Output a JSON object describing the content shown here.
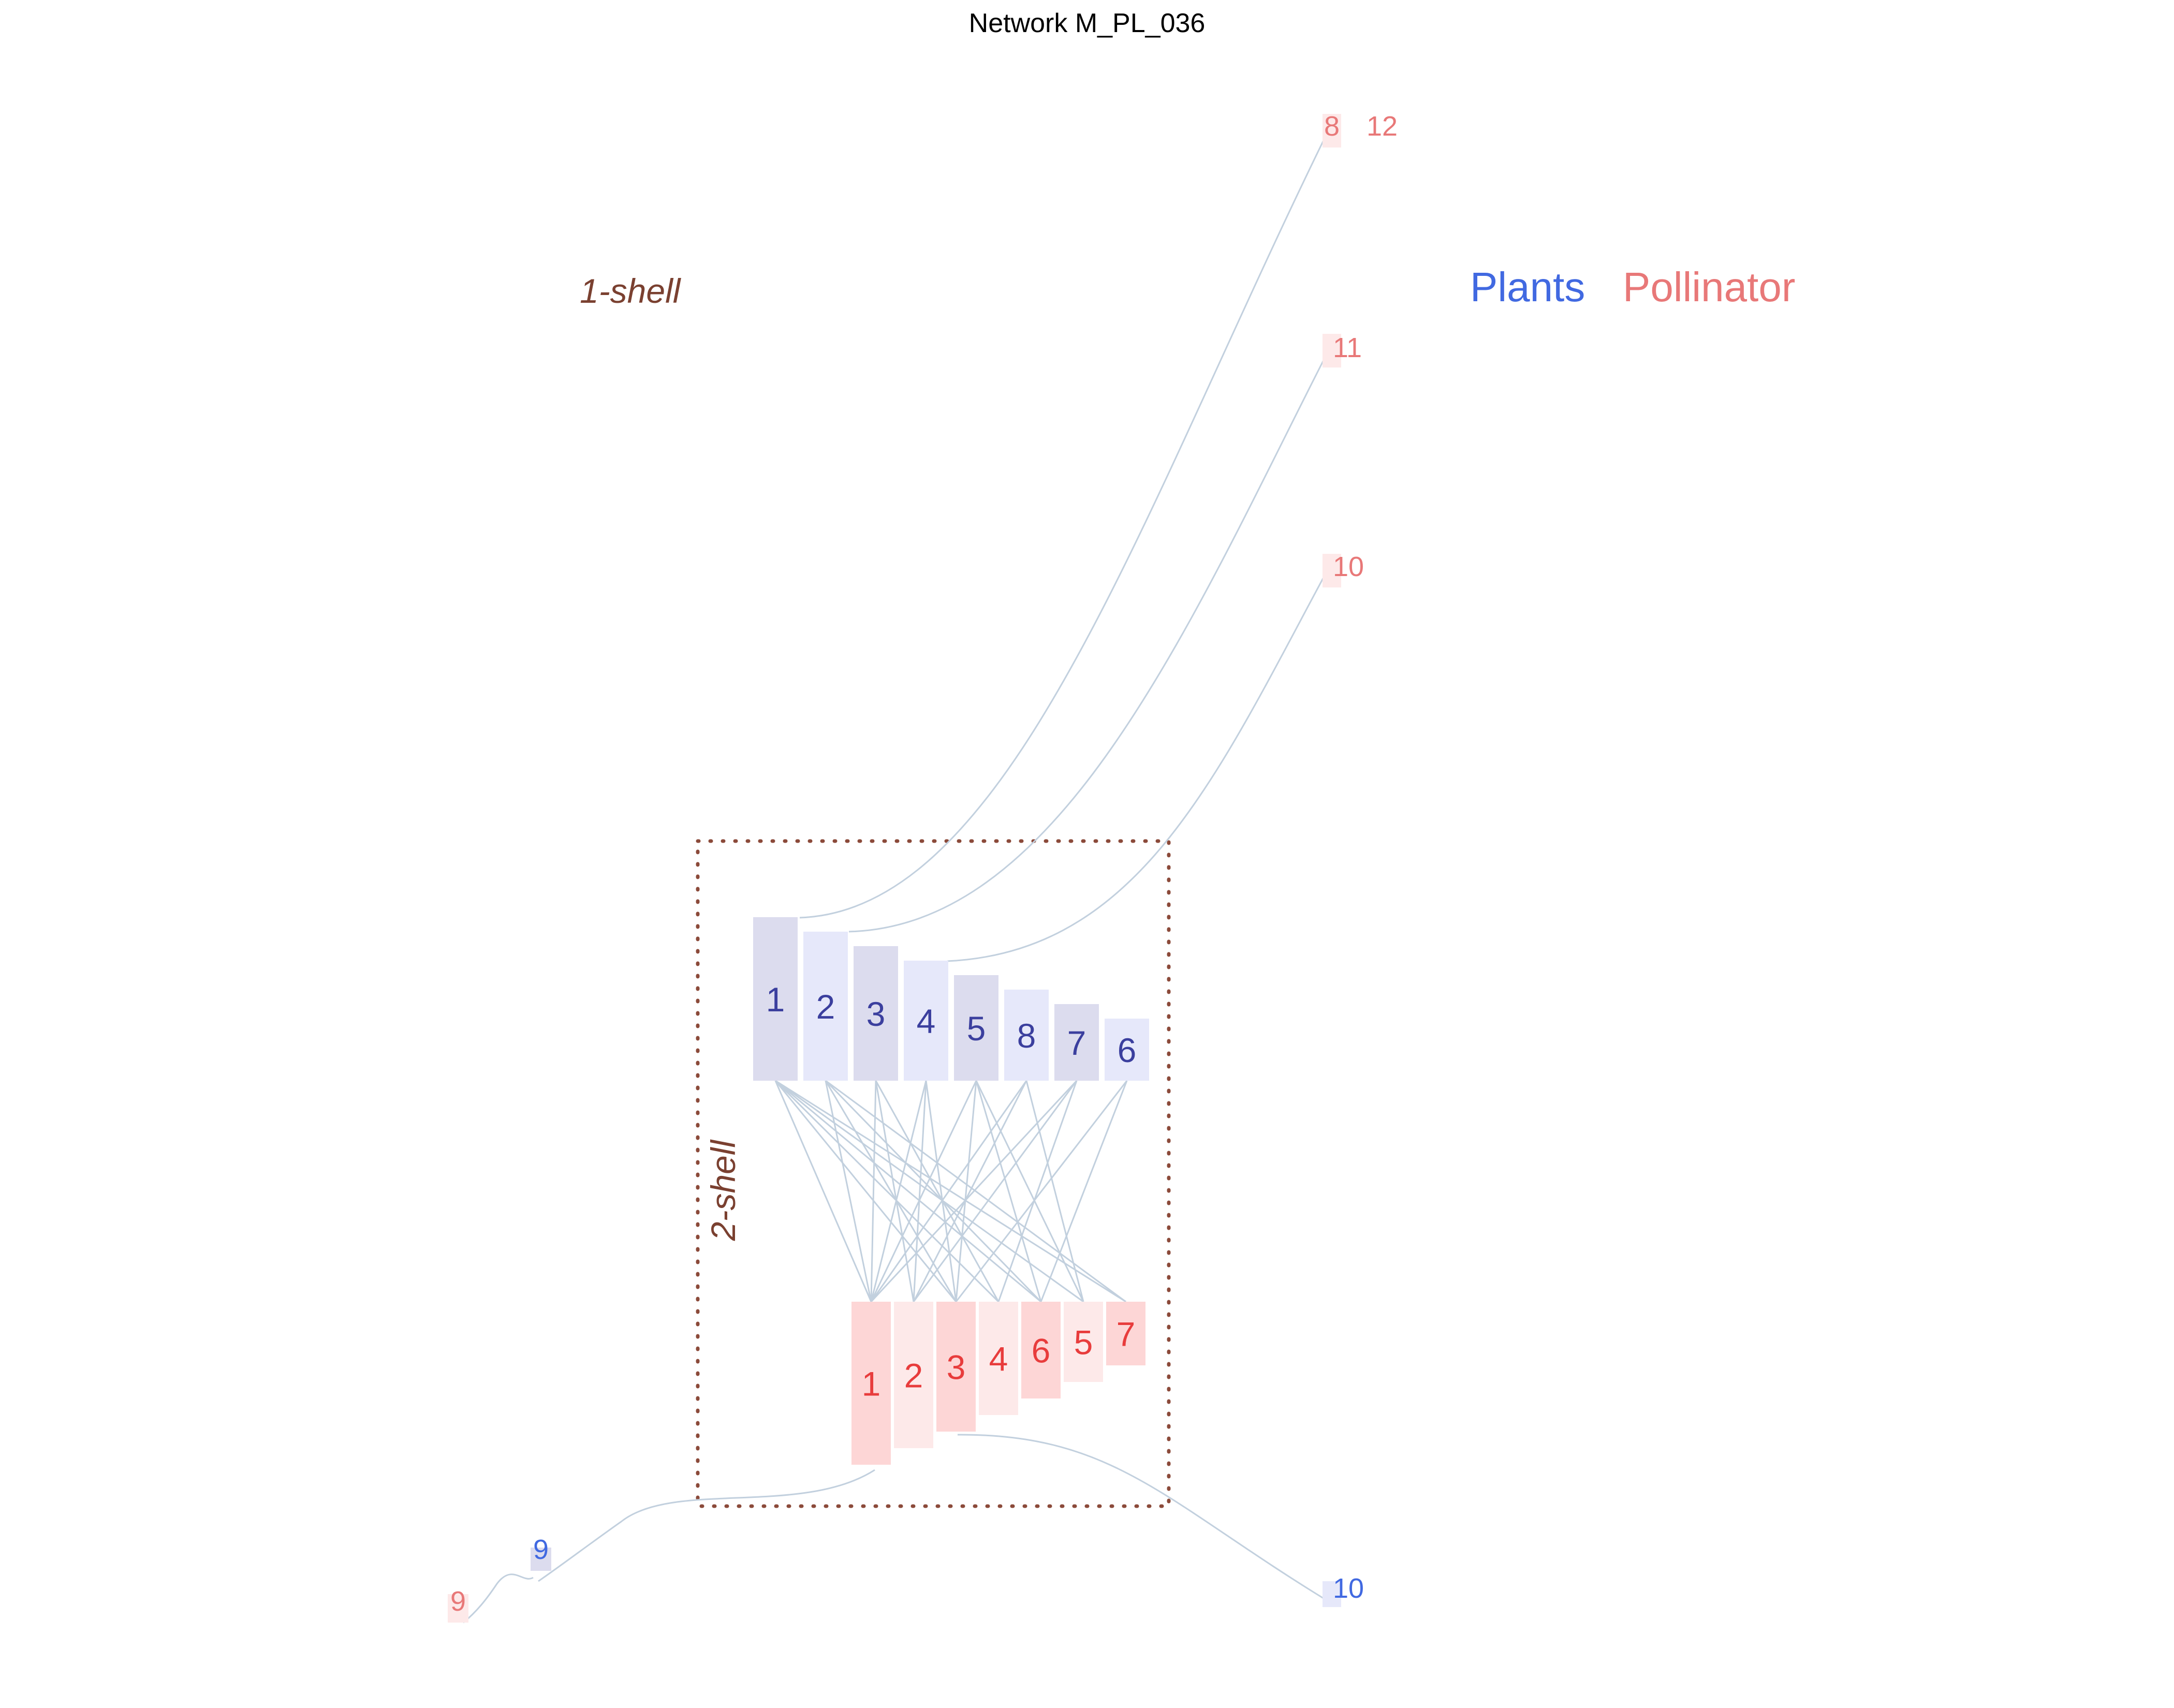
{
  "title": "Network M_PL_036",
  "legend": {
    "plants": "Plants",
    "pollinators": "Pollinator"
  },
  "shells": {
    "outer": "1-shell",
    "inner": "2-shell"
  },
  "colors": {
    "plant_text": "#3b3f9e",
    "plant_label": "#4169e1",
    "plant_fill_a": "#dcdcee",
    "plant_fill_b": "#e6e8fa",
    "poll_text": "#e83c3c",
    "poll_label": "#e87878",
    "poll_fill_a": "#fdd6d6",
    "poll_fill_b": "#fde9e9",
    "link": "#c2d0de",
    "shell_box": "#8b4a3a"
  },
  "plants_core": [
    "1",
    "2",
    "3",
    "4",
    "5",
    "8",
    "7",
    "6"
  ],
  "pollinators_core": [
    "1",
    "2",
    "3",
    "4",
    "6",
    "5",
    "7"
  ],
  "peripheral": {
    "poll_8": "8",
    "poll_12": "12",
    "poll_11": "11",
    "poll_10": "10",
    "plant_9": "9",
    "poll_9": "9",
    "plant_10": "10"
  },
  "links": [
    [
      "1",
      "1"
    ],
    [
      "1",
      "3"
    ],
    [
      "1",
      "4"
    ],
    [
      "1",
      "6"
    ],
    [
      "1",
      "5"
    ],
    [
      "1",
      "7"
    ],
    [
      "2",
      "1"
    ],
    [
      "2",
      "3"
    ],
    [
      "2",
      "6"
    ],
    [
      "2",
      "7"
    ],
    [
      "3",
      "1"
    ],
    [
      "3",
      "2"
    ],
    [
      "3",
      "4"
    ],
    [
      "4",
      "1"
    ],
    [
      "4",
      "2"
    ],
    [
      "4",
      "3"
    ],
    [
      "5",
      "1"
    ],
    [
      "5",
      "3"
    ],
    [
      "5",
      "6"
    ],
    [
      "5",
      "5"
    ],
    [
      "8",
      "1"
    ],
    [
      "8",
      "2"
    ],
    [
      "8",
      "5"
    ],
    [
      "7",
      "1"
    ],
    [
      "7",
      "2"
    ],
    [
      "7",
      "4"
    ],
    [
      "6",
      "3"
    ],
    [
      "6",
      "6"
    ]
  ]
}
